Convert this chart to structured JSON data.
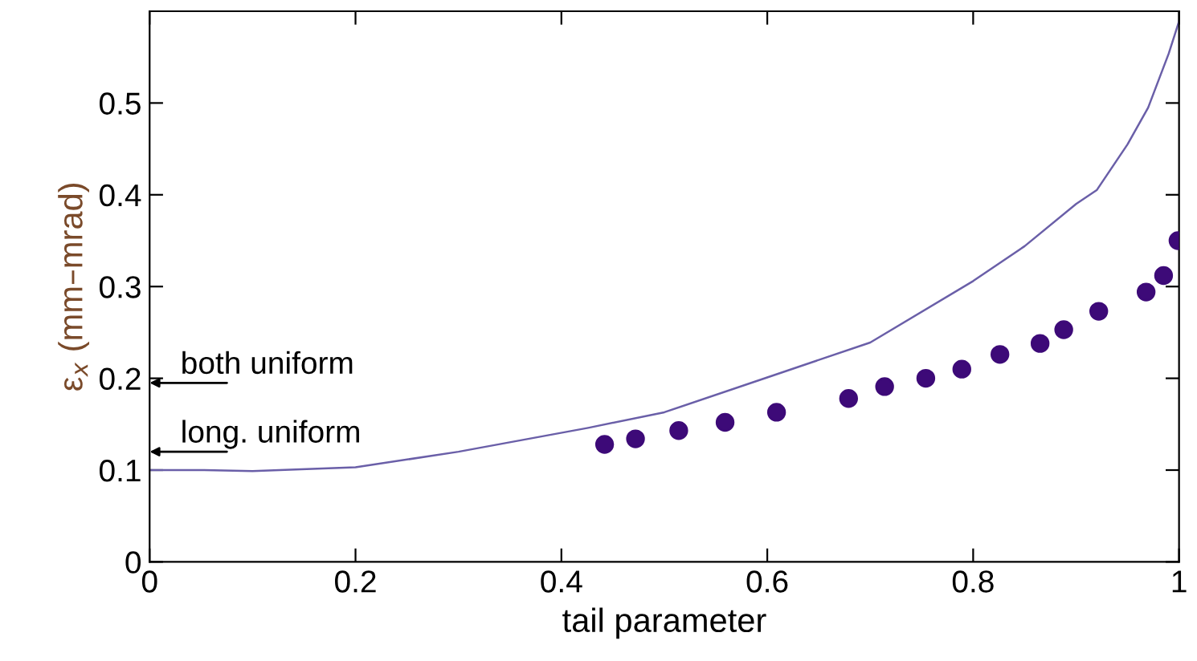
{
  "chart_data": {
    "type": "line",
    "xlabel": "tail parameter",
    "ylabel": "ε$_{x}$ (mm–mrad)",
    "xlim": [
      0,
      1
    ],
    "ylim": [
      0,
      0.6
    ],
    "xticks": [
      0,
      0.2,
      0.4,
      0.6,
      0.8,
      1
    ],
    "yticks": [
      0,
      0.1,
      0.2,
      0.3,
      0.4,
      0.5
    ],
    "grid": false,
    "legend": false,
    "series": [
      {
        "color": "#6a5fa8",
        "x": [
          0,
          0.05,
          0.1,
          0.2,
          0.3,
          0.426,
          0.5,
          0.6,
          0.7,
          0.8,
          0.85,
          0.9,
          0.92,
          0.95,
          0.97,
          0.99,
          1.0
        ],
        "values": [
          0.1,
          0.1,
          0.099,
          0.103,
          0.12,
          0.146,
          0.163,
          0.201,
          0.239,
          0.306,
          0.344,
          0.39,
          0.405,
          0.455,
          0.495,
          0.554,
          0.589
        ]
      },
      {
        "type": "scatter",
        "color": "#3d0a78",
        "marker": "circle",
        "x": [
          0.442,
          0.472,
          0.514,
          0.559,
          0.609,
          0.679,
          0.714,
          0.754,
          0.789,
          0.826,
          0.865,
          0.888,
          0.922,
          0.968,
          0.985,
          0.999
        ],
        "values": [
          0.128,
          0.134,
          0.143,
          0.152,
          0.163,
          0.178,
          0.191,
          0.2,
          0.21,
          0.226,
          0.238,
          0.253,
          0.273,
          0.294,
          0.312,
          0.35
        ]
      }
    ],
    "annotations": [
      "both uniform",
      "long. uniform"
    ]
  }
}
